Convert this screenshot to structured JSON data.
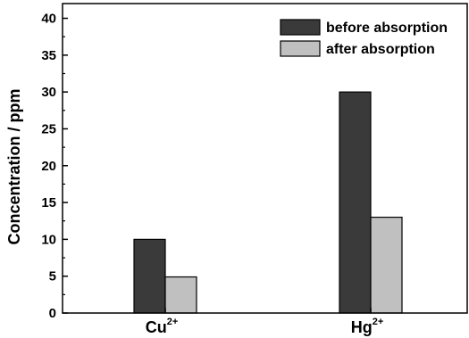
{
  "chart_data": {
    "type": "bar",
    "title": "",
    "xlabel": "",
    "ylabel": "Concentration / ppm",
    "categories": [
      {
        "base": "Cu",
        "superscript": "2+"
      },
      {
        "base": "Hg",
        "superscript": "2+"
      }
    ],
    "series": [
      {
        "name": "before absorption",
        "values": [
          10,
          30
        ],
        "color": "#3a3a3a"
      },
      {
        "name": "after absorption",
        "values": [
          4.9,
          13
        ],
        "color": "#c0c0c0"
      }
    ],
    "ylim": [
      0,
      42
    ],
    "yticks": [
      0,
      5,
      10,
      15,
      20,
      25,
      30,
      35,
      40
    ],
    "grid": false,
    "legend_position": "top-right"
  }
}
